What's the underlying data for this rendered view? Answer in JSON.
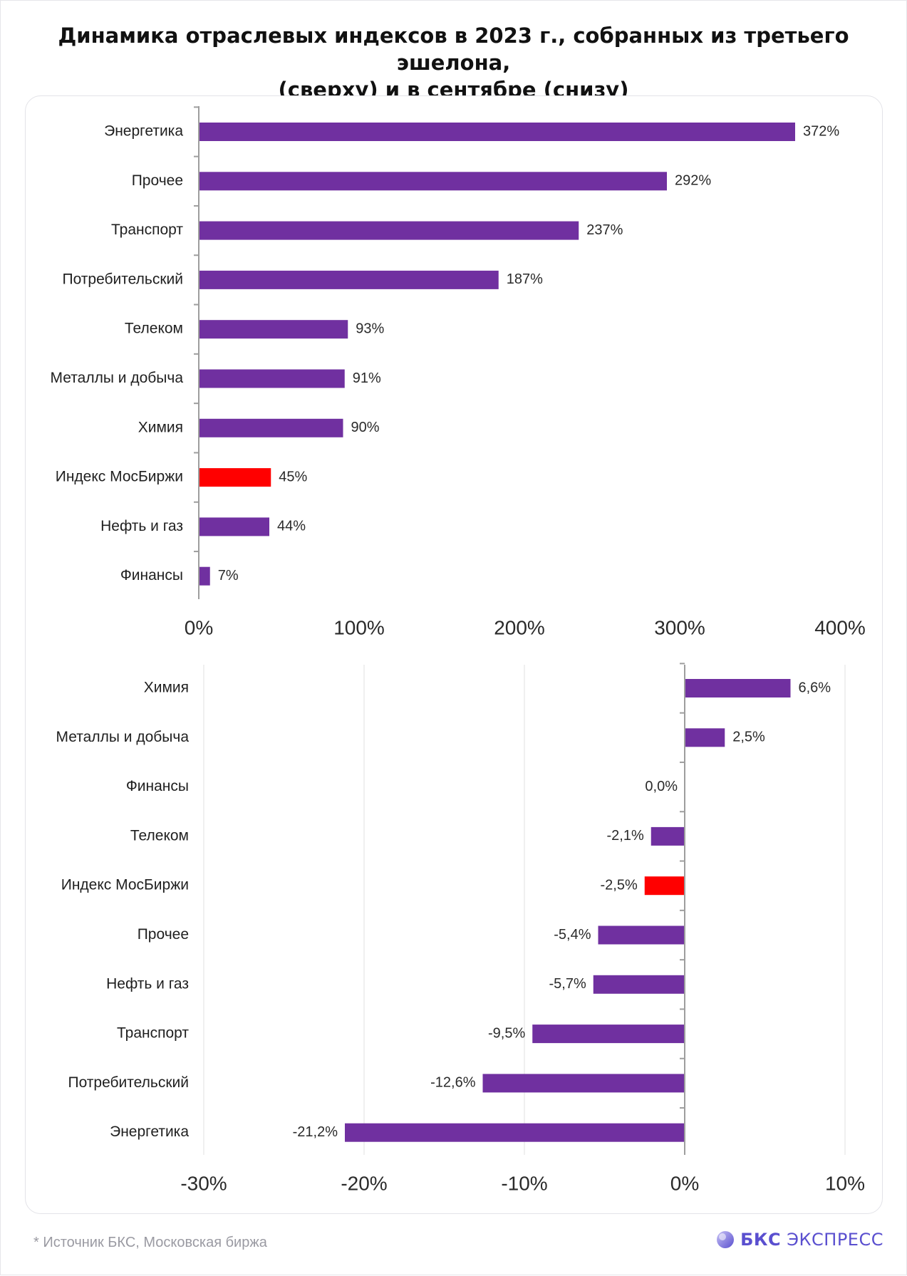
{
  "title": {
    "line1": "Динамика отраслевых индексов в 2023 г., собранных из третьего эшелона,",
    "line2": "(сверху)  и в сентябре (снизу)"
  },
  "footer": {
    "note": "*  Источник БКС, Московская биржа",
    "brand_bold": "БКС",
    "brand_light": "ЭКСПРЕСС"
  },
  "colors": {
    "bar": "#7030a0",
    "highlight": "#ff0000",
    "axis": "#9e9e9e",
    "grid": "#e6e6e6",
    "brand": "#5a4fcf"
  },
  "chart_data": [
    {
      "type": "bar",
      "orientation": "horizontal",
      "categories": [
        "Энергетика",
        "Прочее",
        "Транспорт",
        "Потребительский",
        "Телеком",
        "Металлы и добыча",
        "Химия",
        "Индекс МосБиржи",
        "Нефть и газ",
        "Финансы"
      ],
      "values": [
        372,
        292,
        237,
        187,
        93,
        91,
        90,
        45,
        44,
        7
      ],
      "value_labels": [
        "372%",
        "292%",
        "237%",
        "187%",
        "93%",
        "91%",
        "90%",
        "45%",
        "44%",
        "7%"
      ],
      "highlight_category": "Индекс МосБиржи",
      "xlim": [
        0,
        400
      ],
      "xticks": [
        0,
        100,
        200,
        300,
        400
      ],
      "xtick_labels": [
        "0%",
        "100%",
        "200%",
        "300%",
        "400%"
      ],
      "grid": false
    },
    {
      "type": "bar",
      "orientation": "horizontal",
      "categories": [
        "Химия",
        "Металлы и добыча",
        "Финансы",
        "Телеком",
        "Индекс МосБиржи",
        "Прочее",
        "Нефть и газ",
        "Транспорт",
        "Потребительский",
        "Энергетика"
      ],
      "values": [
        6.6,
        2.5,
        0.0,
        -2.1,
        -2.5,
        -5.4,
        -5.7,
        -9.5,
        -12.6,
        -21.2
      ],
      "value_labels": [
        "6,6%",
        "2,5%",
        "0,0%",
        "-2,1%",
        "-2,5%",
        "-5,4%",
        "-5,7%",
        "-9,5%",
        "-12,6%",
        "-21,2%"
      ],
      "highlight_category": "Индекс МосБиржи",
      "xlim": [
        -30,
        10
      ],
      "xticks": [
        -30,
        -20,
        -10,
        0,
        10
      ],
      "xtick_labels": [
        "-30%",
        "-20%",
        "-10%",
        "0%",
        "10%"
      ],
      "grid": true
    }
  ]
}
